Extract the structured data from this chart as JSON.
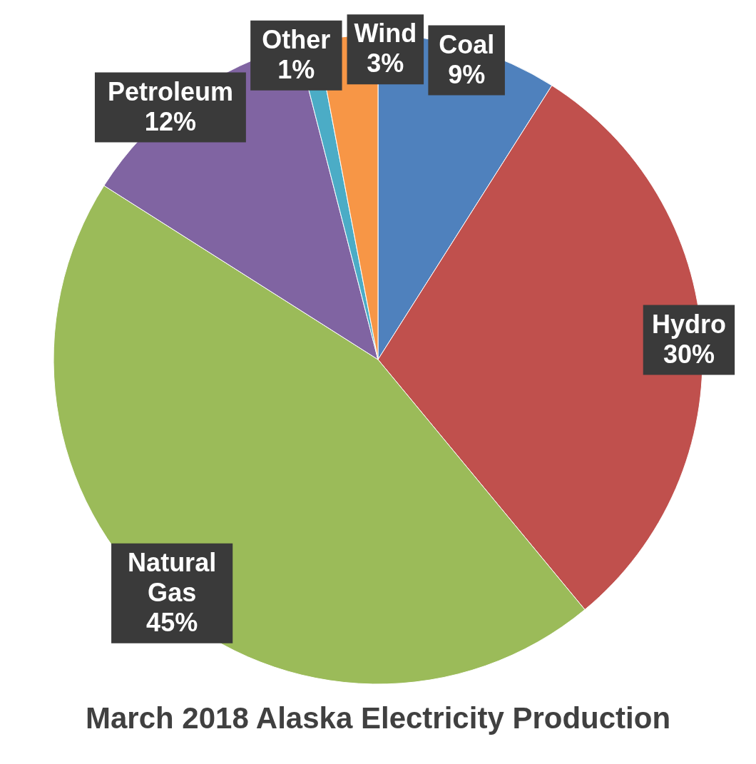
{
  "chart_data": {
    "type": "pie",
    "title": "March 2018 Alaska Electricity Production",
    "categories": [
      "Coal",
      "Hydro",
      "Natural Gas",
      "Petroleum",
      "Other",
      "Wind"
    ],
    "values": [
      9,
      30,
      45,
      12,
      1,
      3
    ],
    "colors": [
      "#4f81bd",
      "#c0504d",
      "#9bbb59",
      "#8064a2",
      "#4bacc6",
      "#f79646"
    ],
    "value_labels": [
      "9%",
      "30%",
      "45%",
      "12%",
      "1%",
      "3%"
    ],
    "legend": false
  }
}
